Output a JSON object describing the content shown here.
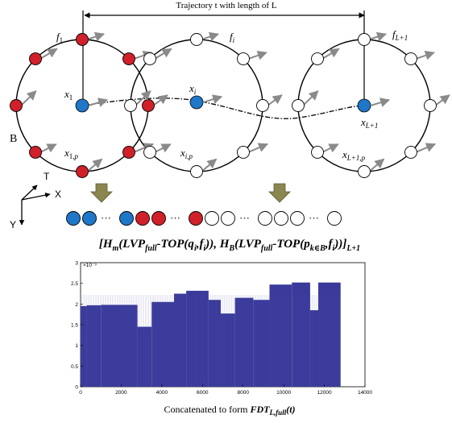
{
  "diagram": {
    "trajectory_label": "Trajectory t with length of L",
    "circles": [
      {
        "frame": "f1",
        "center": "x1",
        "point": "x1,p",
        "region_label": "B",
        "filled": true
      },
      {
        "frame": "fi",
        "center": "xi",
        "point": "xi,p",
        "filled": false
      },
      {
        "frame": "fL+1",
        "center": "xL+1",
        "point": "xL+1,p",
        "filled": false
      }
    ],
    "axes": {
      "t": "T",
      "x": "X",
      "y": "Y"
    },
    "feature_sequence": [
      "blue",
      "blue",
      "...",
      "blue",
      "red",
      "red",
      "...",
      "red",
      "white",
      "white",
      "...",
      "white",
      "white",
      "white",
      "...",
      "white"
    ],
    "formula": "[Hm(LVPfull-TOP(qi,fi)), HB(LVPfull-TOP(pk∈B,fi))]L+1",
    "caption": "Concatenated to form FDTL,full(t)"
  },
  "colors": {
    "blue": "#1f77c8",
    "red": "#d0202a",
    "arrow_gray": "#8a8a8a",
    "bar": "#3a3a9a",
    "down_arrow": "#8b8550"
  },
  "chart_data": {
    "type": "bar",
    "xlim": [
      0,
      14000
    ],
    "ylim": [
      0,
      0.003
    ],
    "xticks": [
      0,
      2000,
      4000,
      6000,
      8000,
      10000,
      12000,
      14000
    ],
    "yticks": [
      0,
      0.0005,
      0.001,
      0.0015,
      0.002,
      0.0025,
      0.003
    ],
    "ytick_labels": [
      "0",
      "0.5",
      "1",
      "1.5",
      "2",
      "2.5",
      "3"
    ],
    "y_exponent": "×10⁻³",
    "xlabel": "",
    "ylabel": "",
    "segments": [
      {
        "x0": 0,
        "x1": 300,
        "y": 0.00195
      },
      {
        "x0": 300,
        "x1": 1000,
        "y": 0.00197
      },
      {
        "x0": 1000,
        "x1": 2800,
        "y": 0.00198
      },
      {
        "x0": 2800,
        "x1": 3500,
        "y": 0.00145
      },
      {
        "x0": 3500,
        "x1": 4600,
        "y": 0.00205
      },
      {
        "x0": 4600,
        "x1": 5200,
        "y": 0.00225
      },
      {
        "x0": 5200,
        "x1": 6300,
        "y": 0.00232
      },
      {
        "x0": 6300,
        "x1": 6900,
        "y": 0.0021
      },
      {
        "x0": 6900,
        "x1": 7600,
        "y": 0.00177
      },
      {
        "x0": 7600,
        "x1": 8500,
        "y": 0.00215
      },
      {
        "x0": 8500,
        "x1": 9300,
        "y": 0.0021
      },
      {
        "x0": 9300,
        "x1": 10400,
        "y": 0.00247
      },
      {
        "x0": 10400,
        "x1": 11300,
        "y": 0.00252
      },
      {
        "x0": 11300,
        "x1": 11700,
        "y": 0.00185
      },
      {
        "x0": 11700,
        "x1": 12800,
        "y": 0.00252
      }
    ]
  }
}
